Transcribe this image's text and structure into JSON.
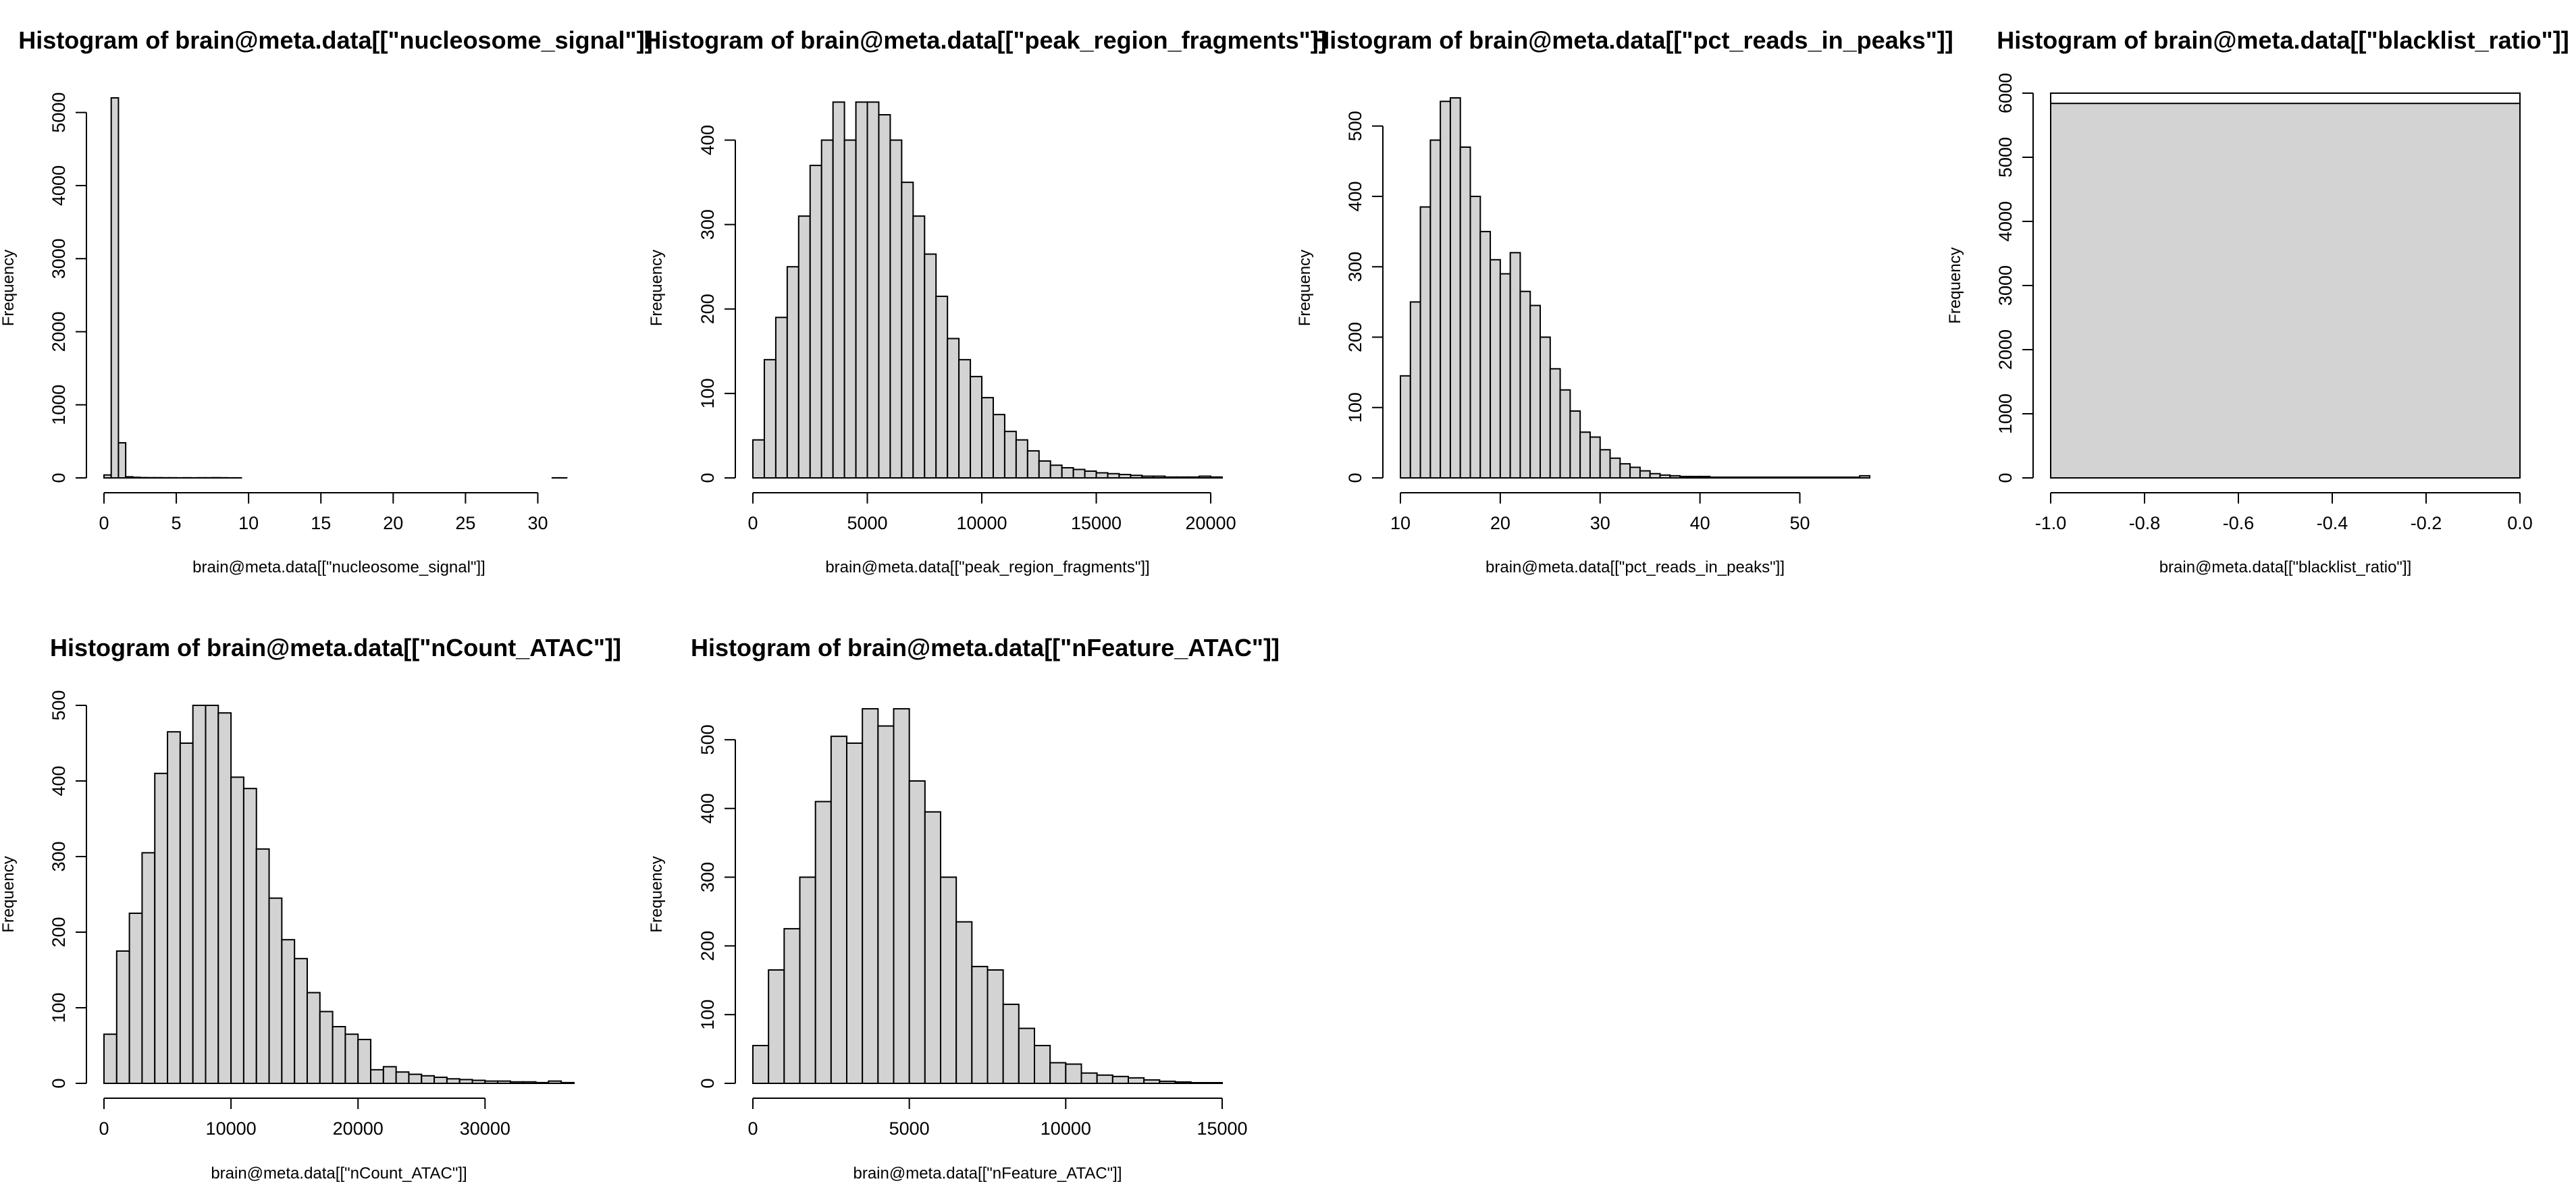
{
  "chart_data": [
    {
      "type": "bar",
      "title": "Histogram of brain@meta.data[[\"nucleosome_signal\"]]",
      "xlabel": "brain@meta.data[[\"nucleosome_signal\"]]",
      "ylabel": "Frequency",
      "bin_start": 0,
      "bin_width": 0.5,
      "values": [
        40,
        5200,
        480,
        15,
        8,
        4,
        3,
        3,
        2,
        2,
        1,
        2,
        1,
        2,
        2,
        3,
        2,
        1,
        1,
        0,
        0,
        0,
        0,
        0,
        0,
        0,
        0,
        0,
        0,
        0,
        0,
        0,
        0,
        0,
        0,
        0,
        0,
        0,
        0,
        0,
        0,
        0,
        0,
        0,
        0,
        0,
        0,
        0,
        0,
        0,
        0,
        0,
        0,
        0,
        0,
        0,
        0,
        0,
        0,
        0,
        0,
        0,
        1,
        1
      ],
      "xlim": [
        0,
        32.5
      ],
      "ylim": [
        0,
        5200
      ],
      "xticks": [
        0,
        5,
        10,
        15,
        20,
        25,
        30
      ],
      "yticks": [
        0,
        1000,
        2000,
        3000,
        4000,
        5000
      ]
    },
    {
      "type": "bar",
      "title": "Histogram of brain@meta.data[[\"peak_region_fragments\"]]",
      "xlabel": "brain@meta.data[[\"peak_region_fragments\"]]",
      "ylabel": "Frequency",
      "bin_start": 0,
      "bin_width": 500,
      "values": [
        45,
        140,
        190,
        250,
        310,
        370,
        400,
        445,
        400,
        445,
        445,
        430,
        400,
        350,
        310,
        265,
        215,
        165,
        140,
        120,
        95,
        75,
        55,
        45,
        32,
        20,
        15,
        12,
        10,
        8,
        6,
        5,
        4,
        3,
        2,
        2,
        1,
        1,
        1,
        2,
        1
      ],
      "xlim": [
        0,
        20500
      ],
      "ylim": [
        0,
        450
      ],
      "xticks": [
        0,
        5000,
        10000,
        15000,
        20000
      ],
      "yticks": [
        0,
        100,
        200,
        300,
        400
      ]
    },
    {
      "type": "bar",
      "title": "Histogram of brain@meta.data[[\"pct_reads_in_peaks\"]]",
      "xlabel": "brain@meta.data[[\"pct_reads_in_peaks\"]]",
      "ylabel": "Frequency",
      "bin_start": 10,
      "bin_width": 1,
      "values": [
        145,
        250,
        385,
        480,
        535,
        540,
        470,
        400,
        350,
        310,
        290,
        320,
        265,
        245,
        200,
        155,
        125,
        95,
        65,
        58,
        40,
        28,
        20,
        15,
        10,
        6,
        4,
        3,
        2,
        2,
        2,
        1,
        1,
        1,
        1,
        1,
        1,
        1,
        1,
        1,
        1,
        1,
        1,
        1,
        1,
        1,
        3
      ],
      "xlim": [
        10,
        57
      ],
      "ylim": [
        0,
        540
      ],
      "xticks": [
        10,
        20,
        30,
        40,
        50
      ],
      "yticks": [
        0,
        100,
        200,
        300,
        400,
        500
      ]
    },
    {
      "type": "bar",
      "title": "Histogram of brain@meta.data[[\"blacklist_ratio\"]]",
      "xlabel": "brain@meta.data[[\"blacklist_ratio\"]]",
      "ylabel": "Frequency",
      "bin_start": -1,
      "bin_width": 1,
      "values": [
        5840
      ],
      "xlim": [
        -1,
        0
      ],
      "ylim": [
        0,
        6000
      ],
      "xticks": [
        "-1.0",
        "-0.8",
        "-0.6",
        "-0.4",
        "-0.2",
        "0.0"
      ],
      "yticks": [
        0,
        1000,
        2000,
        3000,
        4000,
        5000,
        6000
      ]
    },
    {
      "type": "bar",
      "title": "Histogram of brain@meta.data[[\"nCount_ATAC\"]]",
      "xlabel": "brain@meta.data[[\"nCount_ATAC\"]]",
      "ylabel": "Frequency",
      "bin_start": 0,
      "bin_width": 1000,
      "values": [
        65,
        175,
        225,
        305,
        410,
        465,
        450,
        500,
        500,
        490,
        405,
        390,
        310,
        245,
        190,
        165,
        120,
        95,
        75,
        65,
        58,
        18,
        22,
        15,
        12,
        10,
        8,
        6,
        5,
        4,
        3,
        3,
        2,
        2,
        1,
        3,
        1
      ],
      "xlim": [
        0,
        37000
      ],
      "ylim": [
        0,
        500
      ],
      "xticks": [
        0,
        10000,
        20000,
        30000
      ],
      "yticks": [
        0,
        100,
        200,
        300,
        400,
        500
      ]
    },
    {
      "type": "bar",
      "title": "Histogram of brain@meta.data[[\"nFeature_ATAC\"]]",
      "xlabel": "brain@meta.data[[\"nFeature_ATAC\"]]",
      "ylabel": "Frequency",
      "bin_start": 0,
      "bin_width": 500,
      "values": [
        55,
        165,
        225,
        300,
        410,
        505,
        495,
        545,
        520,
        545,
        440,
        395,
        300,
        235,
        170,
        165,
        115,
        80,
        55,
        30,
        28,
        15,
        12,
        10,
        8,
        5,
        3,
        2,
        1,
        1
      ],
      "xlim": [
        0,
        15000
      ],
      "ylim": [
        0,
        550
      ],
      "xticks": [
        0,
        5000,
        10000,
        15000
      ],
      "yticks": [
        0,
        100,
        200,
        300,
        400,
        500
      ]
    }
  ]
}
